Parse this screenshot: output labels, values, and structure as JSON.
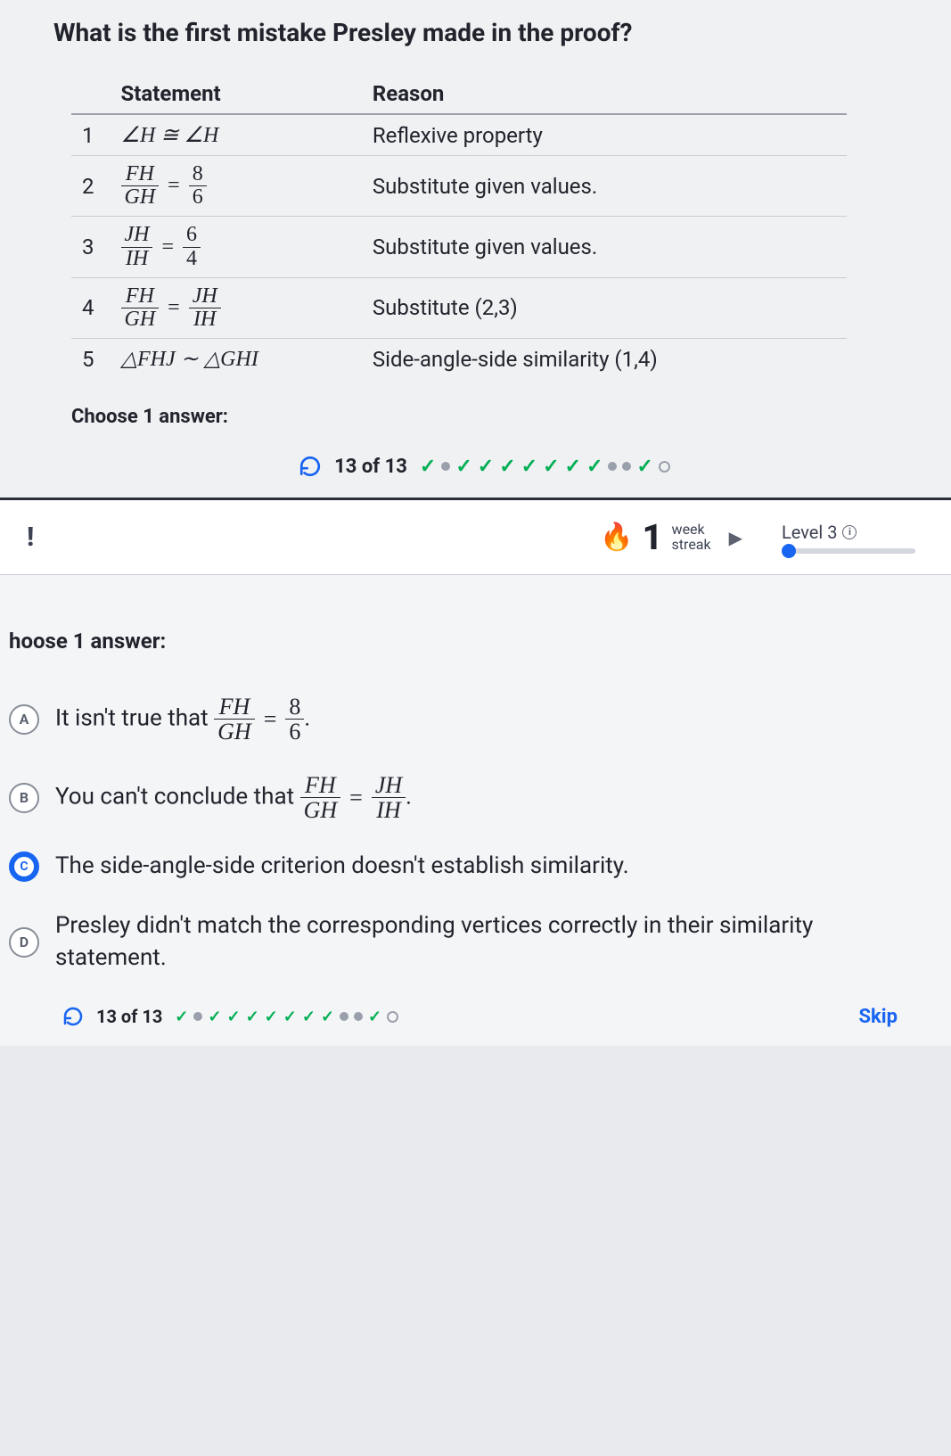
{
  "question": "What is the first mistake Presley made in the proof?",
  "table": {
    "headers": {
      "statement": "Statement",
      "reason": "Reason"
    },
    "rows": [
      {
        "n": "1",
        "statement_html": "<span class='mathit'>∠H ≅ ∠H</span>",
        "reason": "Reflexive property"
      },
      {
        "n": "2",
        "statement_html": "<span class='frac'><span class='num-top'>FH</span><span class='den'>GH</span></span><span class='eq'>=</span><span class='frac'><span class='num-top' style='font-style:normal'>8</span><span class='den' style='font-style:normal'>6</span></span>",
        "reason": "Substitute given values."
      },
      {
        "n": "3",
        "statement_html": "<span class='frac'><span class='num-top'>JH</span><span class='den'>IH</span></span><span class='eq'>=</span><span class='frac'><span class='num-top' style='font-style:normal'>6</span><span class='den' style='font-style:normal'>4</span></span>",
        "reason": "Substitute given values."
      },
      {
        "n": "4",
        "statement_html": "<span class='frac'><span class='num-top'>FH</span><span class='den'>GH</span></span><span class='eq'>=</span><span class='frac'><span class='num-top'>JH</span><span class='den'>IH</span></span>",
        "reason": "Substitute (2,3)"
      },
      {
        "n": "5",
        "statement_html": "<span class='mathit'>△FHJ ∼ △GHI</span>",
        "reason": "Side-angle-side similarity (1,4)"
      }
    ]
  },
  "choose_label": "Choose 1 answer:",
  "progress": {
    "label": "13 of 13",
    "marks": [
      "chk",
      "dot",
      "chk",
      "chk",
      "chk",
      "chk",
      "chk",
      "chk",
      "chk",
      "dot",
      "dot",
      "chk",
      "ring"
    ]
  },
  "streak": {
    "flame": "🔥",
    "number": "1",
    "unit": "week",
    "label": "streak"
  },
  "level": {
    "label": "Level 3"
  },
  "choose_label2": "hoose 1 answer:",
  "choices": [
    {
      "key": "A",
      "html": "It isn't true that <span class='frac'><span class='num-top'>FH</span><span class='den'>GH</span></span><span class='eq'>=</span><span class='frac'><span class='num-top' style='font-style:normal'>8</span><span class='den' style='font-style:normal'>6</span></span>."
    },
    {
      "key": "B",
      "html": "You can't conclude that <span class='frac'><span class='num-top'>FH</span><span class='den'>GH</span></span><span class='eq'>=</span><span class='frac'><span class='num-top'>JH</span><span class='den'>IH</span></span>."
    },
    {
      "key": "C",
      "html": "The side-angle-side criterion doesn't establish similarity.",
      "selected": true
    },
    {
      "key": "D",
      "html": "Presley didn't match the corresponding vertices correctly in their similarity statement."
    }
  ],
  "footer_progress": {
    "label": "13 of 13",
    "marks": [
      "chk",
      "dot",
      "chk",
      "chk",
      "chk",
      "chk",
      "chk",
      "chk",
      "chk",
      "dot",
      "dot",
      "chk",
      "ring"
    ]
  },
  "skip": "Skip",
  "colors": {
    "accent": "#1865f2",
    "correct": "#00af54",
    "flame": "#ff7b1a",
    "bg_top": "#f0f1f3",
    "bg_bottom": "#f4f5f7",
    "text": "#21242c"
  }
}
